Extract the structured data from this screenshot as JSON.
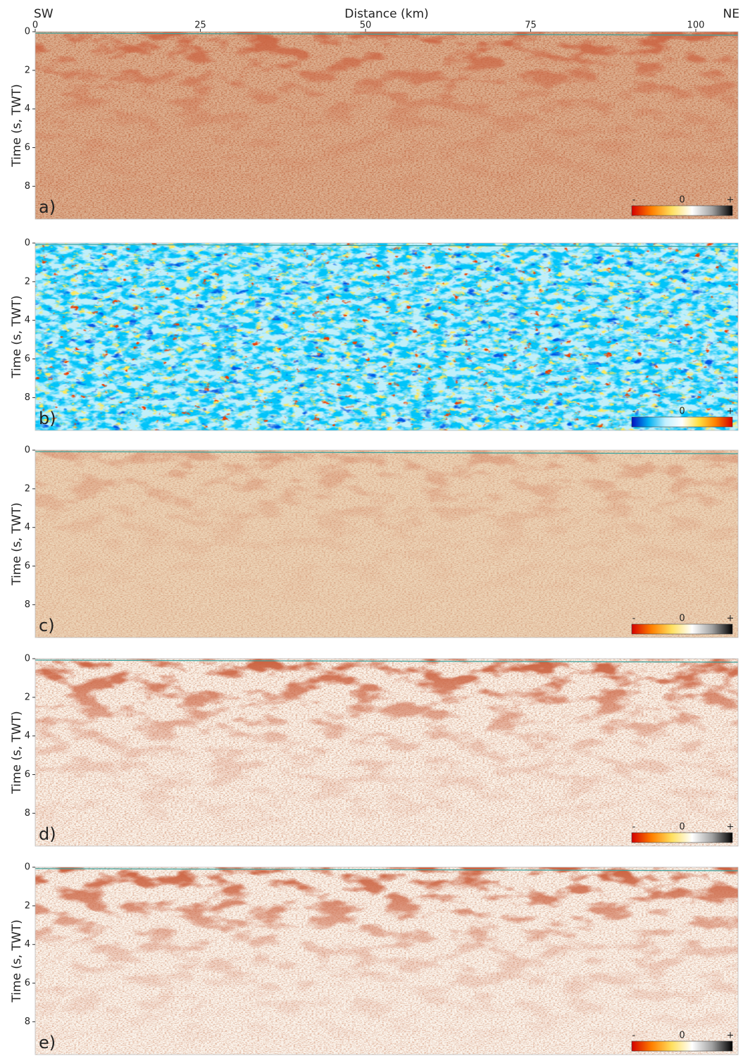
{
  "chart_data": [
    {
      "type": "image",
      "title": "Distance (km)",
      "left_label": "SW",
      "right_label": "NE",
      "panel_label": "a)",
      "ylabel": "Time (s, TWT)",
      "xlim": [
        0,
        106.4
      ],
      "xticks": [
        0,
        25,
        50,
        75,
        100
      ],
      "ylim": [
        0,
        9.7
      ],
      "yticks": [
        0,
        2,
        4,
        6,
        8
      ],
      "colorbar": {
        "labels": [
          "-",
          "0",
          "+"
        ],
        "colors": [
          "#d40000",
          "#ff8000",
          "#ffe060",
          "#ffffff",
          "#a0a0a0",
          "#000000"
        ]
      }
    },
    {
      "type": "image",
      "panel_label": "b)",
      "ylabel": "Time (s, TWT)",
      "ylim": [
        0,
        9.7
      ],
      "yticks": [
        0,
        2,
        4,
        6,
        8
      ],
      "colorbar": {
        "labels": [
          "-",
          "0",
          "+"
        ],
        "colors": [
          "#0010c0",
          "#00b0f0",
          "#c0f0ff",
          "#ffffff",
          "#ffe040",
          "#ff8000",
          "#d00000"
        ]
      }
    },
    {
      "type": "image",
      "panel_label": "c)",
      "ylabel": "Time (s, TWT)",
      "ylim": [
        0,
        9.7
      ],
      "yticks": [
        0,
        2,
        4,
        6,
        8
      ],
      "colorbar": {
        "labels": [
          "-",
          "0",
          "+"
        ],
        "colors": [
          "#d40000",
          "#ff8000",
          "#ffe060",
          "#ffffff",
          "#a0a0a0",
          "#000000"
        ]
      }
    },
    {
      "type": "image",
      "panel_label": "d)",
      "ylabel": "Time (s, TWT)",
      "ylim": [
        0,
        9.7
      ],
      "yticks": [
        0,
        2,
        4,
        6,
        8
      ],
      "colorbar": {
        "labels": [
          "-",
          "0",
          "+"
        ],
        "colors": [
          "#d40000",
          "#ff8000",
          "#ffe060",
          "#ffffff",
          "#a0a0a0",
          "#000000"
        ]
      }
    },
    {
      "type": "image",
      "panel_label": "e)",
      "ylabel": "Time (s, TWT)",
      "ylim": [
        0,
        9.7
      ],
      "yticks": [
        0,
        2,
        4,
        6,
        8
      ],
      "colorbar": {
        "labels": [
          "-",
          "0",
          "+"
        ],
        "colors": [
          "#d40000",
          "#ff8000",
          "#ffe060",
          "#ffffff",
          "#a0a0a0",
          "#000000"
        ]
      }
    }
  ]
}
